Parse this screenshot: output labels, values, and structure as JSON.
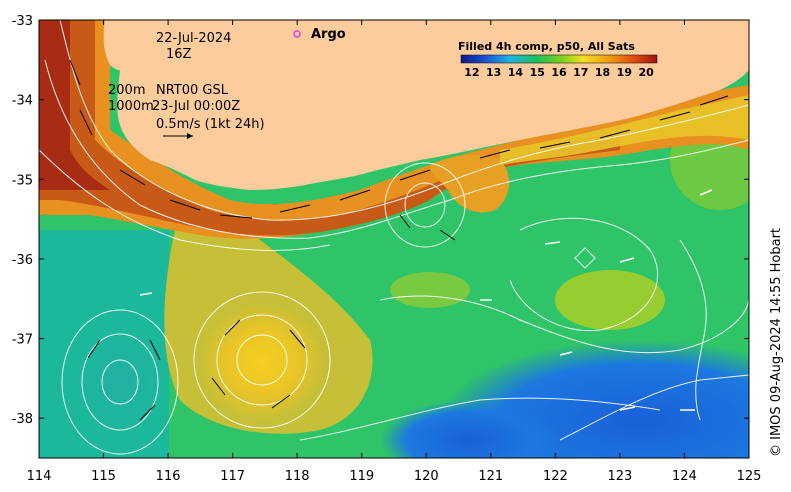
{
  "map": {
    "date": "22-Jul-2024",
    "hour": "16Z",
    "depth_200": "200m",
    "product": "NRT00 GSL",
    "depth_1000": "1000m",
    "valid_time": "23-Jul 00:00Z",
    "velocity_scale": "0.5m/s (1kt 24h)",
    "argo_label": "Argo",
    "credit": "© IMOS 09-Aug-2024 14:55 Hobart",
    "lon_range": [
      114,
      125
    ],
    "lat_range": [
      -38.5,
      -33
    ],
    "lon_ticks": [
      "114",
      "115",
      "116",
      "117",
      "118",
      "119",
      "120",
      "121",
      "122",
      "123",
      "124",
      "125"
    ],
    "lat_ticks": [
      "-33",
      "-34",
      "-35",
      "-36",
      "-37",
      "-38"
    ]
  },
  "colorbar": {
    "title": "Filled 4h comp, p50, All Sats",
    "ticks": [
      "12",
      "13",
      "14",
      "15",
      "16",
      "17",
      "18",
      "19",
      "20"
    ],
    "range": [
      11.5,
      20.5
    ]
  },
  "colors": {
    "land": "#fccc9c",
    "argo_marker": "#e040e0"
  }
}
